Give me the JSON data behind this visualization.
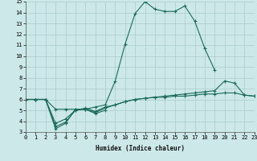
{
  "xlabel": "Humidex (Indice chaleur)",
  "xlim": [
    0,
    23
  ],
  "ylim": [
    3,
    15
  ],
  "xticks": [
    0,
    1,
    2,
    3,
    4,
    5,
    6,
    7,
    8,
    9,
    10,
    11,
    12,
    13,
    14,
    15,
    16,
    17,
    18,
    19,
    20,
    21,
    22,
    23
  ],
  "yticks": [
    3,
    4,
    5,
    6,
    7,
    8,
    9,
    10,
    11,
    12,
    13,
    14,
    15
  ],
  "bg_color": "#cce8e8",
  "grid_color": "#aacccc",
  "line_color": "#1a6b5a",
  "series": [
    {
      "x": [
        0,
        1,
        2,
        3,
        4,
        5,
        6,
        7,
        8
      ],
      "y": [
        6.0,
        6.0,
        6.0,
        3.3,
        3.8,
        5.1,
        5.1,
        4.7,
        5.0
      ]
    },
    {
      "x": [
        0,
        1,
        2,
        3,
        4,
        5,
        6,
        7,
        8,
        9,
        10,
        11,
        12,
        13,
        14,
        15,
        16,
        17,
        18,
        19
      ],
      "y": [
        6.0,
        6.0,
        6.0,
        5.1,
        5.1,
        5.1,
        5.1,
        5.3,
        5.5,
        7.7,
        11.1,
        13.9,
        15.0,
        14.3,
        14.1,
        14.1,
        14.6,
        13.2,
        10.7,
        8.7
      ]
    },
    {
      "x": [
        0,
        1,
        2,
        3,
        4,
        5,
        6,
        7,
        8,
        9,
        10,
        11,
        12,
        13,
        14,
        15,
        16,
        17,
        18,
        19,
        20,
        21,
        22,
        23
      ],
      "y": [
        6.0,
        6.0,
        6.0,
        3.8,
        4.2,
        5.0,
        5.1,
        4.8,
        5.2,
        5.5,
        5.8,
        6.0,
        6.1,
        6.2,
        6.3,
        6.4,
        6.5,
        6.6,
        6.7,
        6.8,
        7.7,
        7.5,
        6.4,
        6.3
      ]
    },
    {
      "x": [
        0,
        1,
        2,
        3,
        4,
        5,
        6,
        7,
        8,
        9,
        10,
        11,
        12,
        13,
        14,
        15,
        16,
        17,
        18,
        19,
        20,
        21,
        22,
        23
      ],
      "y": [
        6.0,
        6.0,
        6.0,
        3.5,
        3.9,
        5.0,
        5.2,
        4.9,
        5.3,
        5.5,
        5.8,
        6.0,
        6.1,
        6.2,
        6.2,
        6.3,
        6.3,
        6.4,
        6.5,
        6.5,
        6.6,
        6.6,
        6.4,
        6.3
      ]
    }
  ]
}
